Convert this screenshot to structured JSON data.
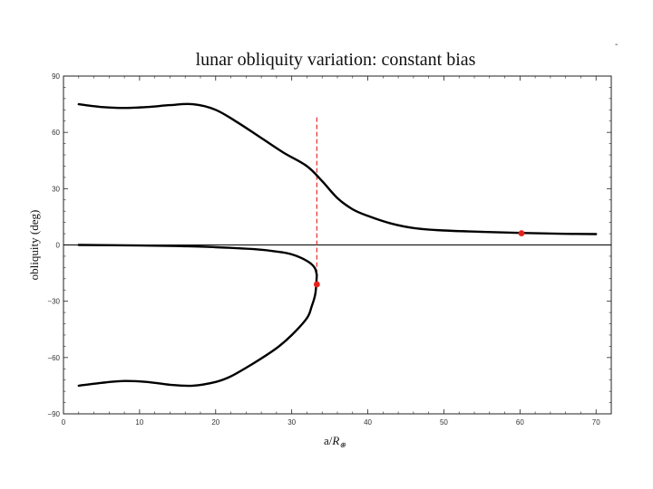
{
  "corner_mark": "-",
  "chart_data": {
    "type": "line",
    "title": "lunar obliquity variation: constant bias",
    "xlabel_main": "a/",
    "xlabel_symbol": "R",
    "xlabel_subscript": "⊕",
    "ylabel": "obliquity (deg)",
    "xlim": [
      0,
      72
    ],
    "ylim": [
      -90,
      90
    ],
    "xticks": [
      0,
      10,
      20,
      30,
      40,
      50,
      60,
      70
    ],
    "yticks": [
      90,
      60,
      30,
      0,
      -30,
      -60,
      -90
    ],
    "xtick_labels": [
      "0",
      "10",
      "20",
      "30",
      "40",
      "50",
      "60",
      "70"
    ],
    "ytick_labels": [
      "90",
      "60",
      "30",
      "0",
      "−30",
      "−60",
      "−90"
    ],
    "colors": {
      "curve": "#000000",
      "marker": "#e8201c",
      "dashed": "#e0302a",
      "frame": "#222222"
    },
    "series": [
      {
        "x": [
          2,
          5,
          8,
          11,
          14,
          17,
          20,
          23,
          26,
          29,
          32,
          34,
          36,
          38,
          40,
          43,
          46,
          50,
          55,
          60,
          65,
          70
        ],
        "y": [
          75,
          73.5,
          73,
          73.5,
          74.5,
          75,
          72,
          65,
          57,
          49,
          42,
          34,
          25,
          19,
          15.5,
          11.5,
          9,
          7.7,
          7,
          6.4,
          6,
          5.8
        ]
      },
      {
        "x": [
          2,
          5,
          10,
          15,
          20,
          25,
          28,
          30,
          32,
          33,
          33.3
        ],
        "y": [
          0,
          -0.1,
          -0.3,
          -0.6,
          -1.2,
          -2.2,
          -3.5,
          -5,
          -8.5,
          -12,
          -16
        ]
      },
      {
        "x": [
          33.3,
          33.1,
          32.6,
          32,
          30,
          28,
          25,
          22,
          20,
          17,
          14,
          11,
          8,
          5,
          2
        ],
        "y": [
          -16,
          -26,
          -33,
          -39,
          -48,
          -55,
          -63,
          -70,
          -73,
          -75,
          -74.5,
          -73,
          -72.5,
          -73.5,
          -75
        ]
      }
    ],
    "reference_line": {
      "y": 0
    },
    "vertical_dashed": {
      "x": 33.3,
      "y_range": [
        -20,
        68
      ]
    },
    "points": [
      {
        "x": 33.3,
        "y": -21
      },
      {
        "x": 60.2,
        "y": 6.2
      }
    ]
  }
}
